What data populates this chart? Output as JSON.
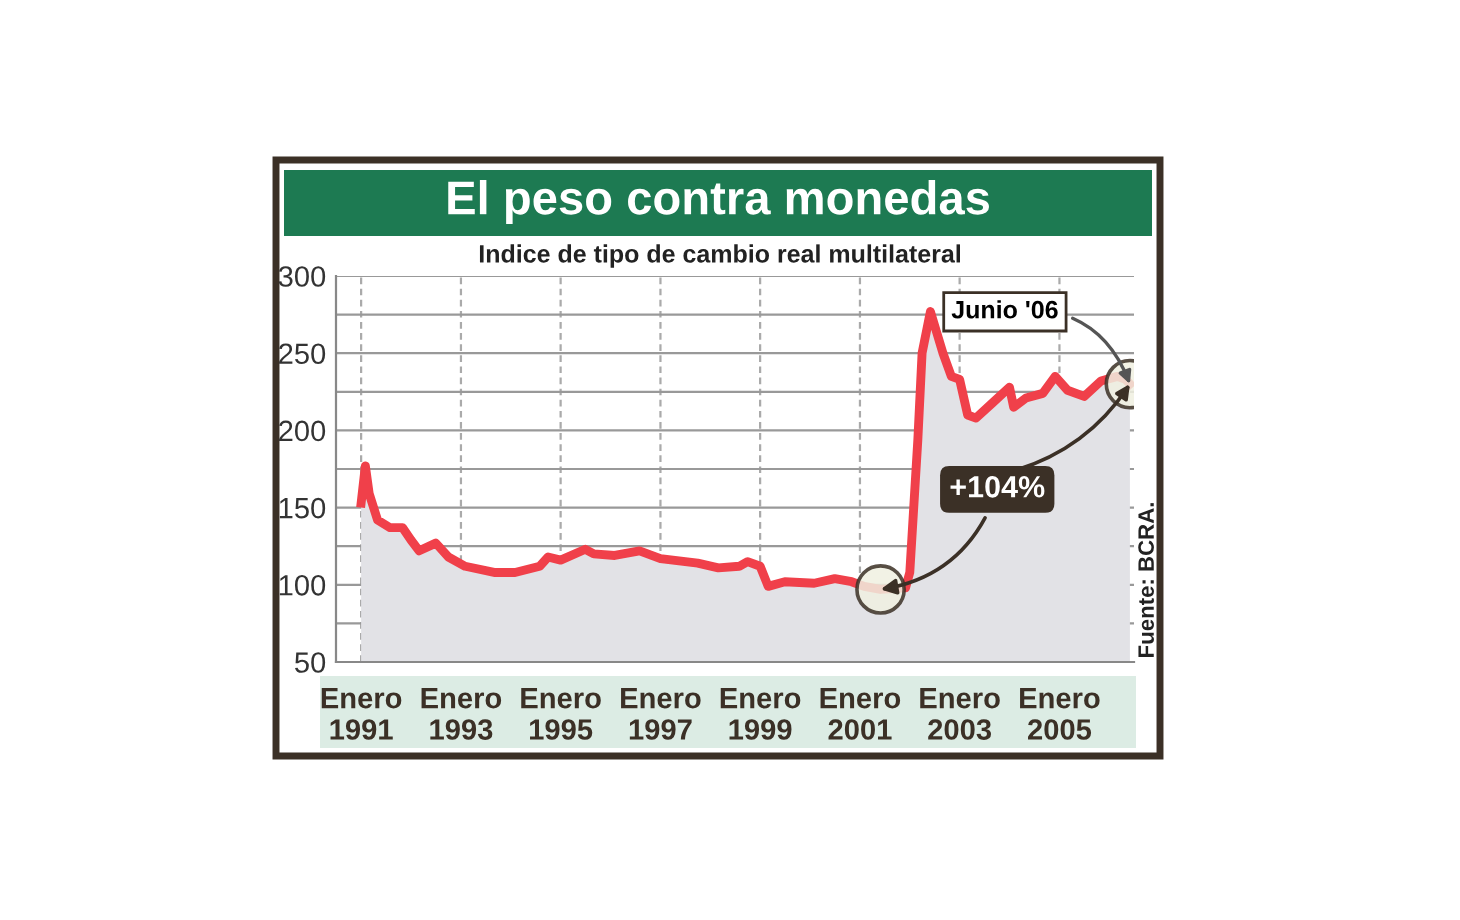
{
  "chart_data": {
    "type": "area",
    "title": "El peso contra monedas",
    "subtitle": "Indice de tipo de cambio real multilateral",
    "series": [
      {
        "color": "#f0404a",
        "x": [
          "1991-01",
          "1991-02",
          "1991-03",
          "1991-05",
          "1991-08",
          "1991-11",
          "1992-01",
          "1992-03",
          "1992-07",
          "1992-10",
          "1993-02",
          "1993-09",
          "1994-02",
          "1994-08",
          "1994-10",
          "1995-01",
          "1995-07",
          "1995-09",
          "1996-02",
          "1996-08",
          "1997-01",
          "1997-10",
          "1998-03",
          "1998-08",
          "1998-10",
          "1999-01",
          "1999-03",
          "1999-07",
          "2000-02",
          "2000-07",
          "2000-11",
          "2001-02",
          "2001-06",
          "2001-12",
          "2002-01",
          "2002-03",
          "2002-04",
          "2002-06",
          "2002-09",
          "2002-11",
          "2003-01",
          "2003-03",
          "2003-05",
          "2003-09",
          "2004-01",
          "2004-02",
          "2004-05",
          "2004-09",
          "2004-12",
          "2005-03",
          "2005-07",
          "2005-11",
          "2006-03",
          "2006-05",
          "2006-06"
        ],
        "values": [
          153,
          177,
          159,
          142,
          137,
          137,
          129,
          122,
          127,
          118,
          112,
          108,
          108,
          112,
          118,
          116,
          123,
          120,
          119,
          122,
          117,
          114,
          111,
          112,
          115,
          112,
          99,
          102,
          101,
          104,
          102,
          99,
          97,
          98,
          108,
          194,
          250,
          277,
          250,
          235,
          233,
          210,
          208,
          218,
          228,
          215,
          221,
          224,
          235,
          226,
          222,
          232,
          235,
          233,
          230
        ]
      }
    ],
    "xlim": [
      "1990-07",
      "2006-07"
    ],
    "xticks": [
      {
        "value": "1991-01",
        "label": "Enero\n1991"
      },
      {
        "value": "1993-01",
        "label": "Enero\n1993"
      },
      {
        "value": "1995-01",
        "label": "Enero\n1995"
      },
      {
        "value": "1997-01",
        "label": "Enero\n1997"
      },
      {
        "value": "1999-01",
        "label": "Enero\n1999"
      },
      {
        "value": "2001-01",
        "label": "Enero\n2001"
      },
      {
        "value": "2003-01",
        "label": "Enero\n2003"
      },
      {
        "value": "2005-01",
        "label": "Enero\n2005"
      }
    ],
    "ylim": [
      50,
      300
    ],
    "yticks": [
      50,
      {
        "value": 75,
        "label": null
      },
      100,
      {
        "value": 125,
        "label": null
      },
      150,
      {
        "value": 175,
        "label": null
      },
      200,
      {
        "value": 225,
        "label": null
      },
      250,
      {
        "value": 275,
        "label": null
      },
      300
    ],
    "grid": true,
    "annotations": [
      {
        "text": "Junio '06",
        "x": "2006-06",
        "y": 230
      },
      {
        "text": "+104%",
        "x": "2001-06",
        "y": 97
      },
      "Fuente: BCRA."
    ]
  }
}
